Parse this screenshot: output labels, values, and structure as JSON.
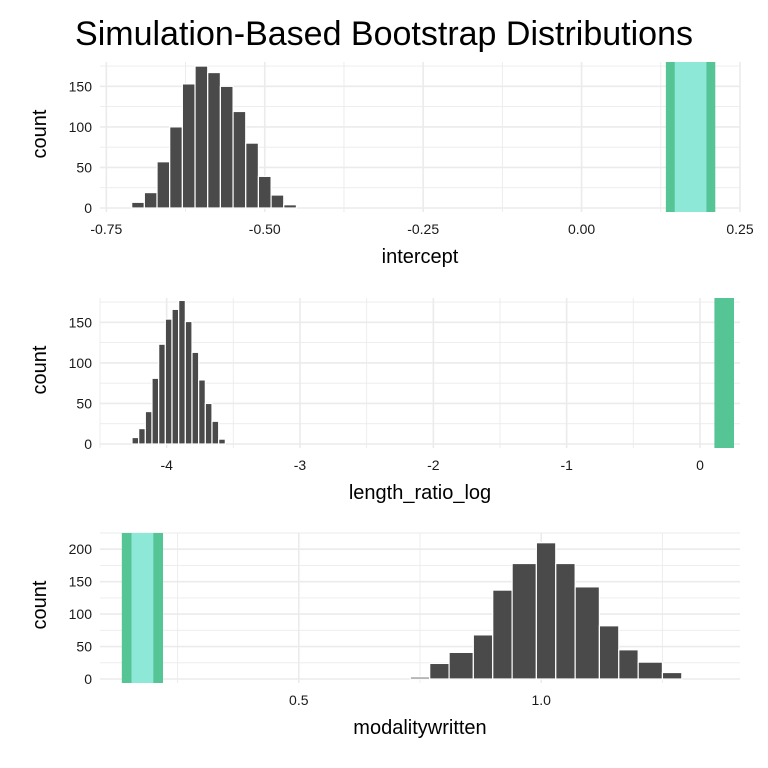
{
  "title": "Simulation-Based Bootstrap Distributions",
  "chart_data": [
    {
      "type": "bar",
      "xlabel": "intercept",
      "ylabel": "count",
      "xlim": [
        -0.76,
        0.25
      ],
      "ylim": [
        0,
        180
      ],
      "xticks": [
        -0.75,
        -0.5,
        -0.25,
        0.0,
        0.25
      ],
      "xtick_labels": [
        "-0.75",
        "-0.50",
        "-0.25",
        "0.00",
        "0.25"
      ],
      "yticks": [
        0,
        50,
        100,
        150
      ],
      "ytick_labels": [
        "0",
        "50",
        "100",
        "150"
      ],
      "grid": true,
      "bins": [
        {
          "x0": -0.71,
          "x1": -0.69,
          "count": 7
        },
        {
          "x0": -0.69,
          "x1": -0.67,
          "count": 19
        },
        {
          "x0": -0.67,
          "x1": -0.65,
          "count": 57
        },
        {
          "x0": -0.65,
          "x1": -0.63,
          "count": 100
        },
        {
          "x0": -0.63,
          "x1": -0.61,
          "count": 153
        },
        {
          "x0": -0.61,
          "x1": -0.59,
          "count": 175
        },
        {
          "x0": -0.59,
          "x1": -0.57,
          "count": 167
        },
        {
          "x0": -0.57,
          "x1": -0.55,
          "count": 150
        },
        {
          "x0": -0.55,
          "x1": -0.53,
          "count": 119
        },
        {
          "x0": -0.53,
          "x1": -0.51,
          "count": 80
        },
        {
          "x0": -0.51,
          "x1": -0.49,
          "count": 39
        },
        {
          "x0": -0.49,
          "x1": -0.47,
          "count": 16
        },
        {
          "x0": -0.47,
          "x1": -0.45,
          "count": 4
        }
      ],
      "observed": {
        "outer": [
          0.133,
          0.211
        ],
        "inner": [
          0.147,
          0.197
        ]
      },
      "colors": {
        "bar": "#4a4a4a",
        "outer": "#56c596",
        "inner": "#8de8d8"
      }
    },
    {
      "type": "bar",
      "xlabel": "length_ratio_log",
      "ylabel": "count",
      "xlim": [
        -4.5,
        0.3
      ],
      "ylim": [
        0,
        180
      ],
      "xticks": [
        -4,
        -3,
        -2,
        -1,
        0
      ],
      "xtick_labels": [
        "-4",
        "-3",
        "-2",
        "-1",
        "0"
      ],
      "yticks": [
        0,
        50,
        100,
        150
      ],
      "ytick_labels": [
        "0",
        "50",
        "100",
        "150"
      ],
      "grid": true,
      "bins": [
        {
          "x0": -4.26,
          "x1": -4.21,
          "count": 8
        },
        {
          "x0": -4.21,
          "x1": -4.16,
          "count": 19
        },
        {
          "x0": -4.16,
          "x1": -4.11,
          "count": 40
        },
        {
          "x0": -4.11,
          "x1": -4.06,
          "count": 81
        },
        {
          "x0": -4.06,
          "x1": -4.01,
          "count": 123
        },
        {
          "x0": -4.01,
          "x1": -3.96,
          "count": 154
        },
        {
          "x0": -3.96,
          "x1": -3.91,
          "count": 166
        },
        {
          "x0": -3.91,
          "x1": -3.86,
          "count": 177
        },
        {
          "x0": -3.86,
          "x1": -3.81,
          "count": 151
        },
        {
          "x0": -3.81,
          "x1": -3.76,
          "count": 113
        },
        {
          "x0": -3.76,
          "x1": -3.71,
          "count": 79
        },
        {
          "x0": -3.71,
          "x1": -3.66,
          "count": 50
        },
        {
          "x0": -3.66,
          "x1": -3.61,
          "count": 28
        },
        {
          "x0": -3.61,
          "x1": -3.56,
          "count": 6
        }
      ],
      "observed": {
        "outer": [
          0.108,
          0.255
        ],
        "inner": null
      },
      "colors": {
        "bar": "#4a4a4a",
        "outer": "#56c596",
        "inner": "#8de8d8"
      }
    },
    {
      "type": "bar",
      "xlabel": "modalitywritten",
      "ylabel": "count",
      "xlim": [
        0.09,
        1.41
      ],
      "ylim": [
        0,
        225
      ],
      "xticks": [
        0.5,
        1.0
      ],
      "xtick_labels": [
        "0.5",
        "1.0"
      ],
      "yticks": [
        0,
        50,
        100,
        150,
        200
      ],
      "ytick_labels": [
        "0",
        "50",
        "100",
        "150",
        "200"
      ],
      "grid": true,
      "bins": [
        {
          "x0": 0.73,
          "x1": 0.77,
          "count": 3
        },
        {
          "x0": 0.77,
          "x1": 0.81,
          "count": 24
        },
        {
          "x0": 0.81,
          "x1": 0.86,
          "count": 41
        },
        {
          "x0": 0.86,
          "x1": 0.9,
          "count": 68
        },
        {
          "x0": 0.9,
          "x1": 0.94,
          "count": 137
        },
        {
          "x0": 0.94,
          "x1": 0.99,
          "count": 178
        },
        {
          "x0": 0.99,
          "x1": 1.03,
          "count": 210
        },
        {
          "x0": 1.03,
          "x1": 1.07,
          "count": 178
        },
        {
          "x0": 1.07,
          "x1": 1.12,
          "count": 142
        },
        {
          "x0": 1.12,
          "x1": 1.16,
          "count": 82
        },
        {
          "x0": 1.16,
          "x1": 1.2,
          "count": 45
        },
        {
          "x0": 1.2,
          "x1": 1.25,
          "count": 26
        },
        {
          "x0": 1.25,
          "x1": 1.29,
          "count": 10
        }
      ],
      "observed": {
        "outer": [
          0.135,
          0.22
        ],
        "inner": [
          0.155,
          0.2
        ]
      },
      "colors": {
        "bar": "#4a4a4a",
        "outer": "#56c596",
        "inner": "#8de8d8"
      }
    }
  ]
}
